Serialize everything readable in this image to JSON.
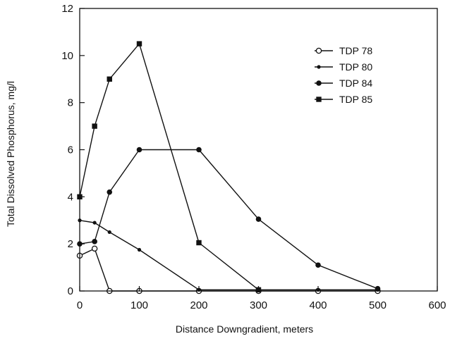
{
  "chart_data": {
    "type": "line",
    "title": "",
    "xlabel": "Distance Downgradient, meters",
    "ylabel": "Total Dissolved Phosphorus, mg/l",
    "xlim": [
      0,
      600
    ],
    "ylim": [
      0,
      12
    ],
    "xticks": [
      0,
      100,
      200,
      300,
      400,
      500,
      600
    ],
    "yticks": [
      0,
      2,
      4,
      6,
      8,
      10,
      12
    ],
    "grid": false,
    "legend_position": "top-right",
    "series": [
      {
        "name": "TDP 78",
        "marker": "open-circle",
        "color": "#111111",
        "x": [
          0,
          25,
          50,
          100,
          200,
          300,
          400,
          500
        ],
        "y": [
          1.5,
          1.8,
          0.0,
          0.0,
          0.0,
          0.0,
          0.0,
          0.0
        ]
      },
      {
        "name": "TDP 80",
        "marker": "small-dot",
        "color": "#111111",
        "x": [
          0,
          25,
          50,
          100,
          200,
          300,
          400,
          500
        ],
        "y": [
          3.0,
          2.9,
          2.5,
          1.75,
          0.05,
          0.05,
          0.05,
          0.05
        ]
      },
      {
        "name": "TDP 84",
        "marker": "filled-circle",
        "color": "#111111",
        "x": [
          0,
          25,
          50,
          100,
          200,
          300,
          400,
          500
        ],
        "y": [
          2.0,
          2.1,
          4.2,
          6.0,
          6.0,
          3.05,
          1.1,
          0.1
        ]
      },
      {
        "name": "TDP 85",
        "marker": "filled-square",
        "color": "#111111",
        "x": [
          0,
          25,
          50,
          100,
          200,
          300
        ],
        "y": [
          4.0,
          7.0,
          9.0,
          10.5,
          2.05,
          0.05
        ]
      }
    ]
  }
}
